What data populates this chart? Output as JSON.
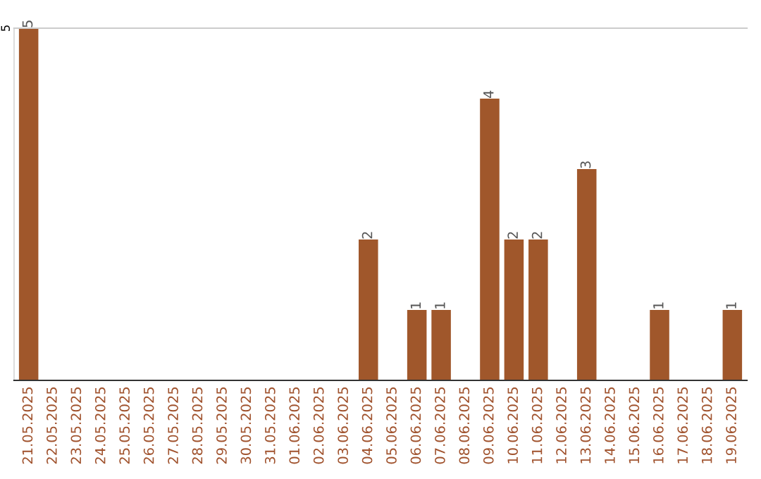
{
  "chart_data": {
    "type": "bar",
    "categories": [
      "21.05.2025",
      "22.05.2025",
      "23.05.2025",
      "24.05.2025",
      "25.05.2025",
      "26.05.2025",
      "27.05.2025",
      "28.05.2025",
      "29.05.2025",
      "30.05.2025",
      "31.05.2025",
      "01.06.2025",
      "02.06.2025",
      "03.06.2025",
      "04.06.2025",
      "05.06.2025",
      "06.06.2025",
      "07.06.2025",
      "08.06.2025",
      "09.06.2025",
      "10.06.2025",
      "11.06.2025",
      "12.06.2025",
      "13.06.2025",
      "14.06.2025",
      "15.06.2025",
      "16.06.2025",
      "17.06.2025",
      "18.06.2025",
      "19.06.2025"
    ],
    "values": [
      5,
      0,
      0,
      0,
      0,
      0,
      0,
      0,
      0,
      0,
      0,
      0,
      0,
      0,
      2,
      0,
      1,
      1,
      0,
      4,
      2,
      2,
      0,
      3,
      0,
      0,
      1,
      0,
      0,
      1
    ],
    "value_labels": [
      "5",
      null,
      null,
      null,
      null,
      null,
      null,
      null,
      null,
      null,
      null,
      null,
      null,
      null,
      "2",
      null,
      "1",
      "1",
      null,
      "4",
      "2",
      "2",
      null,
      "3",
      null,
      null,
      "1",
      null,
      null,
      "1"
    ],
    "color": "#a0572b",
    "ylim": [
      0,
      5
    ],
    "yticks": [
      5
    ]
  }
}
